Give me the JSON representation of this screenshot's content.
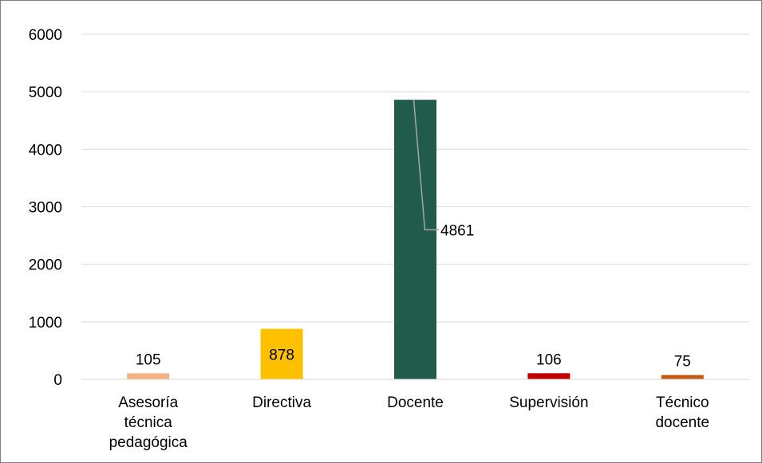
{
  "chart_data": {
    "type": "bar",
    "categories": [
      [
        "Asesoría",
        "técnica",
        "pedagógica"
      ],
      [
        "Directiva"
      ],
      [
        "Docente"
      ],
      [
        "Supervisión"
      ],
      [
        "Técnico",
        "docente"
      ]
    ],
    "values": [
      105,
      878,
      4861,
      106,
      75
    ],
    "data_labels": [
      "105",
      "878",
      "4861",
      "106",
      "75"
    ],
    "colors": [
      "#f4b183",
      "#ffc000",
      "#215b4b",
      "#c00000",
      "#c55a11"
    ],
    "ylim": [
      0,
      6000
    ],
    "yticks": [
      0,
      1000,
      2000,
      3000,
      4000,
      5000,
      6000
    ],
    "grid": true,
    "gridline_color": "#d9d9d9",
    "leader_line_color": "#a6a6a6",
    "title": "",
    "xlabel": "",
    "ylabel": ""
  }
}
